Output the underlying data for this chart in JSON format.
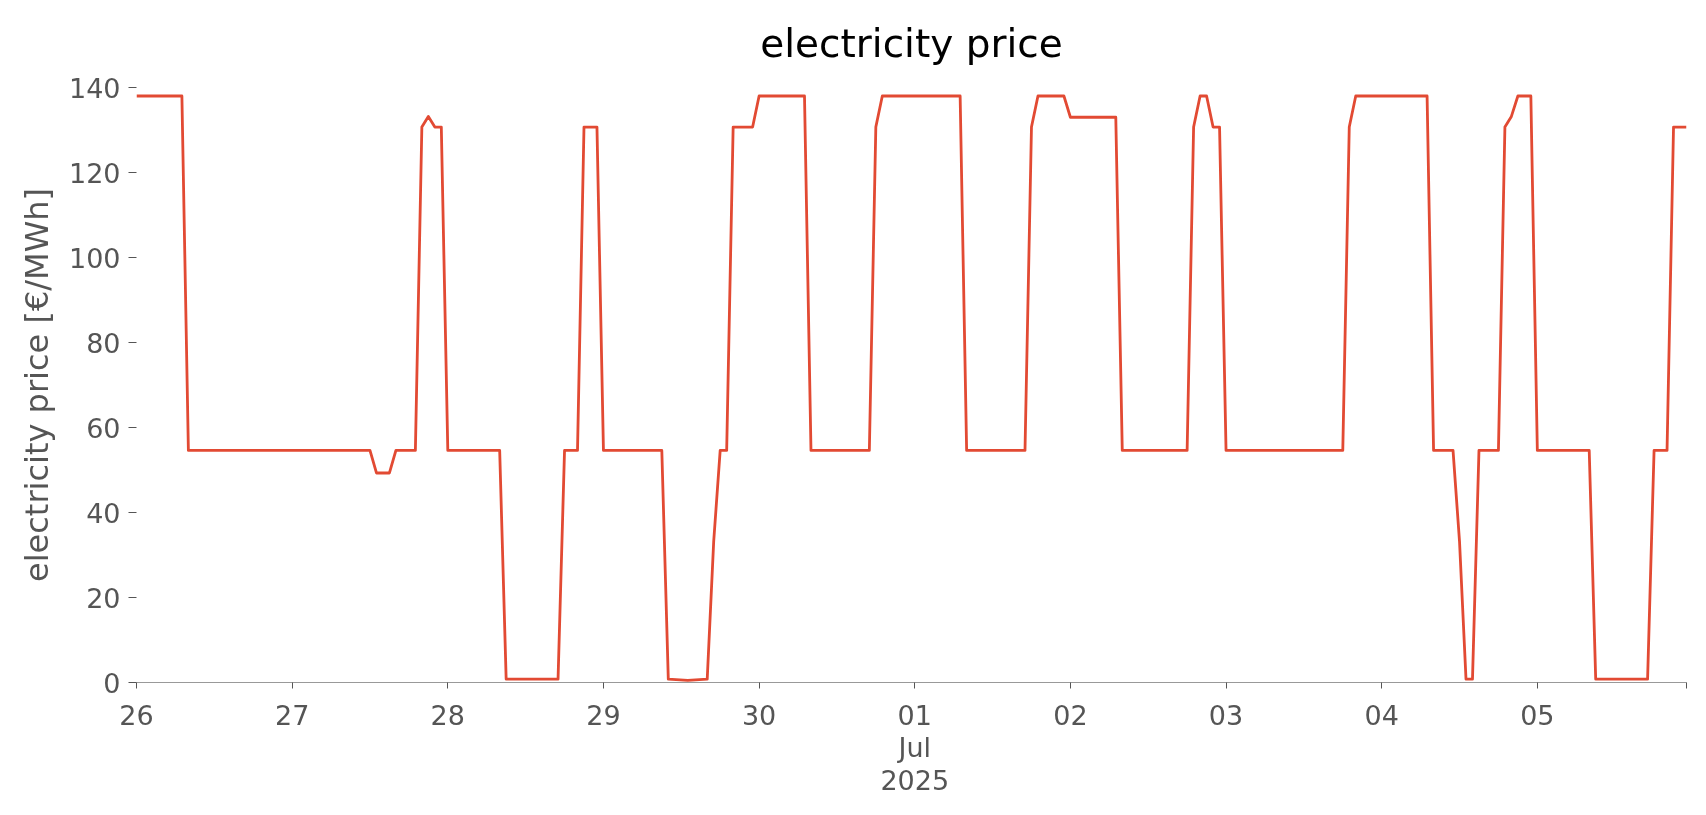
{
  "chart_data": {
    "type": "line",
    "title": "electricity price",
    "ylabel": "electricity price [€/MWh]",
    "x": [
      "2025-06-26T00:00",
      "2025-06-26T07:00",
      "2025-06-26T08:00",
      "2025-06-27T12:00",
      "2025-06-27T13:00",
      "2025-06-27T15:00",
      "2025-06-27T16:00",
      "2025-06-27T19:00",
      "2025-06-27T20:00",
      "2025-06-27T21:00",
      "2025-06-27T22:00",
      "2025-06-27T23:00",
      "2025-06-28T00:00",
      "2025-06-28T08:00",
      "2025-06-28T09:00",
      "2025-06-28T17:00",
      "2025-06-28T18:00",
      "2025-06-28T20:00",
      "2025-06-28T21:00",
      "2025-06-28T23:00",
      "2025-06-29T00:00",
      "2025-06-29T09:00",
      "2025-06-29T10:00",
      "2025-06-29T13:00",
      "2025-06-29T16:00",
      "2025-06-29T17:00",
      "2025-06-29T18:00",
      "2025-06-29T19:00",
      "2025-06-29T20:00",
      "2025-06-29T23:00",
      "2025-06-30T00:00",
      "2025-06-30T07:00",
      "2025-06-30T08:00",
      "2025-06-30T17:00",
      "2025-06-30T18:00",
      "2025-06-30T19:00",
      "2025-07-01T07:00",
      "2025-07-01T08:00",
      "2025-07-01T17:00",
      "2025-07-01T18:00",
      "2025-07-01T19:00",
      "2025-07-01T23:00",
      "2025-07-02T00:00",
      "2025-07-02T07:00",
      "2025-07-02T08:00",
      "2025-07-02T18:00",
      "2025-07-02T19:00",
      "2025-07-02T20:00",
      "2025-07-02T21:00",
      "2025-07-02T22:00",
      "2025-07-02T23:00",
      "2025-07-03T00:00",
      "2025-07-03T18:00",
      "2025-07-03T19:00",
      "2025-07-03T20:00",
      "2025-07-04T07:00",
      "2025-07-04T08:00",
      "2025-07-04T11:00",
      "2025-07-04T12:00",
      "2025-07-04T13:00",
      "2025-07-04T14:00",
      "2025-07-04T15:00",
      "2025-07-04T18:00",
      "2025-07-04T19:00",
      "2025-07-04T20:00",
      "2025-07-04T21:00",
      "2025-07-04T23:00",
      "2025-07-05T00:00",
      "2025-07-05T08:00",
      "2025-07-05T09:00",
      "2025-07-05T17:00",
      "2025-07-05T18:00",
      "2025-07-05T20:00",
      "2025-07-05T21:00",
      "2025-07-05T23:00"
    ],
    "series": [
      {
        "color": "#e24a33",
        "values": [
          138,
          138,
          54.6,
          54.6,
          49.3,
          49.3,
          54.6,
          54.6,
          130.7,
          133.2,
          130.7,
          130.7,
          54.6,
          54.6,
          0.8,
          0.8,
          54.6,
          54.6,
          130.7,
          130.7,
          54.6,
          54.6,
          0.8,
          0.5,
          0.8,
          33.2,
          54.6,
          54.6,
          130.7,
          130.7,
          138,
          138,
          54.6,
          54.6,
          130.7,
          138,
          138,
          54.6,
          54.6,
          130.7,
          138,
          138,
          133,
          133,
          54.6,
          54.6,
          130.7,
          138,
          138,
          130.7,
          130.7,
          54.6,
          54.6,
          130.7,
          138,
          138,
          54.6,
          54.6,
          33.2,
          0.8,
          0.8,
          54.6,
          54.6,
          130.7,
          133.2,
          138,
          138,
          54.6,
          54.6,
          0.8,
          0.8,
          54.6,
          54.6,
          130.7,
          130.7
        ]
      }
    ],
    "xlim": [
      "2025-06-26T00:00",
      "2025-07-05T23:00"
    ],
    "ylim": [
      0,
      140
    ],
    "xticks": [
      {
        "value": "2025-06-26",
        "label": "26"
      },
      {
        "value": "2025-06-27",
        "label": "27"
      },
      {
        "value": "2025-06-28",
        "label": "28"
      },
      {
        "value": "2025-06-29",
        "label": "29"
      },
      {
        "value": "2025-06-30",
        "label": "30"
      },
      {
        "value": "2025-07-01",
        "label": "01\nJul\n2025"
      },
      {
        "value": "2025-07-02",
        "label": "02"
      },
      {
        "value": "2025-07-03",
        "label": "03"
      },
      {
        "value": "2025-07-04",
        "label": "04"
      },
      {
        "value": "2025-07-05",
        "label": "05"
      },
      {
        "value": "2025-07-05T23:00",
        "label": null
      }
    ],
    "yticks": [
      0,
      20,
      40,
      60,
      80,
      100,
      120,
      140
    ],
    "grid": false
  }
}
